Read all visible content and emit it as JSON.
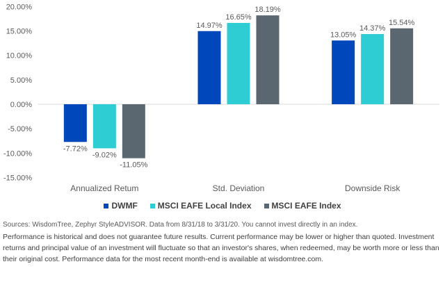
{
  "chart_data": {
    "type": "bar",
    "title": "",
    "xlabel": "",
    "ylabel": "",
    "ylim": [
      -15,
      20
    ],
    "yticks": [
      20,
      15,
      10,
      5,
      0,
      -5,
      -10,
      -15
    ],
    "ytick_labels": [
      "20.00%",
      "15.00%",
      "10.00%",
      "5.00%",
      "0.00%",
      "-5.00%",
      "-10.00%",
      "-15.00%"
    ],
    "categories": [
      "Annualized Retum",
      "Std. Deviation",
      "Downside Risk"
    ],
    "series": [
      {
        "name": "DWMF",
        "color": "#0047BB",
        "values": [
          -7.72,
          14.97,
          13.05
        ],
        "labels": [
          "-7.72%",
          "14.97%",
          "13.05%"
        ]
      },
      {
        "name": "MSCI EAFE Local Index",
        "color": "#2ECCD3",
        "values": [
          -9.02,
          16.65,
          14.37
        ],
        "labels": [
          "-9.02%",
          "16.65%",
          "14.37%"
        ]
      },
      {
        "name": "MSCI EAFE Index",
        "color": "#5B6770",
        "values": [
          -11.05,
          18.19,
          15.54
        ],
        "labels": [
          "-11.05%",
          "18.19%",
          "15.54%"
        ]
      }
    ],
    "grid": false,
    "legend_position": "bottom"
  },
  "notes": {
    "source": "Sources: WisdomTree, Zephyr StyleADVISOR. Data from 8/31/18 to 3/31/20.  You cannot invest directly in an index.",
    "disclaimer": "Performance is historical and does not guarantee future results. Current performance may be lower or higher than quoted. Investment returns and principal value of an investment will fluctuate so that an investor's shares, when redeemed, may be worth more or less than their original cost. Performance data for the most recent month-end is available at wisdomtree.com."
  }
}
